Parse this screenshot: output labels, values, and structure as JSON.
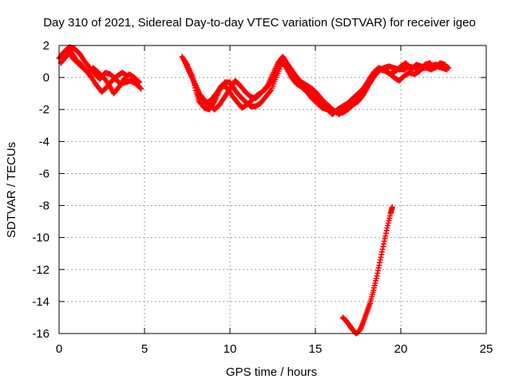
{
  "chart_data": {
    "type": "scatter",
    "title": "Day 310 of 2021, Sidereal Day-to-day VTEC variation (SDTVAR) for receiver igeo",
    "xlabel": "GPS time / hours",
    "ylabel": "SDTVAR / TECUs",
    "xlim": [
      0,
      25
    ],
    "ylim": [
      -16,
      2
    ],
    "xticks": [
      0,
      5,
      10,
      15,
      20,
      25
    ],
    "yticks": [
      -16,
      -14,
      -12,
      -10,
      -8,
      -6,
      -4,
      -2,
      0,
      2
    ],
    "grid": true,
    "marker": "plus",
    "color": "#ff0000",
    "series": [
      {
        "name": "SDTVAR",
        "segments": [
          [
            [
              0.0,
              1.2
            ],
            [
              0.3,
              1.6
            ],
            [
              0.6,
              1.9
            ],
            [
              0.9,
              1.8
            ],
            [
              1.2,
              1.5
            ],
            [
              1.5,
              1.0
            ],
            [
              1.8,
              0.6
            ],
            [
              2.1,
              0.2
            ],
            [
              2.4,
              -0.1
            ],
            [
              2.7,
              0.3
            ],
            [
              3.0,
              0.2
            ],
            [
              3.3,
              -0.1
            ],
            [
              3.6,
              -0.4
            ],
            [
              3.9,
              -0.3
            ],
            [
              4.2,
              -0.2
            ],
            [
              4.5,
              -0.4
            ],
            [
              4.8,
              -0.7
            ]
          ],
          [
            [
              0.1,
              0.9
            ],
            [
              0.4,
              1.3
            ],
            [
              0.7,
              1.6
            ],
            [
              1.0,
              1.1
            ],
            [
              1.3,
              0.8
            ],
            [
              1.6,
              0.4
            ],
            [
              1.9,
              0.0
            ],
            [
              2.2,
              -0.5
            ],
            [
              2.5,
              -0.9
            ],
            [
              2.8,
              -0.6
            ],
            [
              3.1,
              -0.2
            ],
            [
              3.4,
              0.1
            ],
            [
              3.7,
              0.3
            ],
            [
              4.0,
              0.1
            ]
          ],
          [
            [
              0.2,
              1.5
            ],
            [
              0.5,
              1.8
            ],
            [
              0.8,
              1.2
            ],
            [
              1.1,
              0.9
            ],
            [
              1.4,
              0.6
            ],
            [
              1.7,
              0.3
            ],
            [
              2.0,
              0.6
            ],
            [
              2.3,
              0.3
            ],
            [
              2.6,
              0.0
            ],
            [
              2.9,
              -0.4
            ],
            [
              3.2,
              -1.0
            ],
            [
              3.5,
              -0.6
            ],
            [
              3.8,
              -0.1
            ],
            [
              4.1,
              0.2
            ],
            [
              4.4,
              0.0
            ],
            [
              4.7,
              -0.3
            ]
          ],
          [
            [
              7.2,
              1.3
            ],
            [
              7.5,
              0.8
            ],
            [
              7.8,
              0.1
            ],
            [
              8.0,
              -0.8
            ],
            [
              8.2,
              -1.5
            ],
            [
              8.5,
              -1.9
            ],
            [
              8.8,
              -2.0
            ],
            [
              9.1,
              -1.5
            ],
            [
              9.4,
              -0.8
            ],
            [
              9.7,
              -0.3
            ],
            [
              10.0,
              -0.3
            ],
            [
              10.3,
              -0.8
            ],
            [
              10.6,
              -1.2
            ],
            [
              10.9,
              -1.5
            ],
            [
              11.2,
              -1.8
            ],
            [
              11.5,
              -1.8
            ],
            [
              11.8,
              -1.6
            ],
            [
              12.1,
              -1.2
            ],
            [
              12.4,
              -0.8
            ],
            [
              12.7,
              0.0
            ],
            [
              13.0,
              0.8
            ],
            [
              13.3,
              0.9
            ],
            [
              13.6,
              0.5
            ],
            [
              13.9,
              0.0
            ],
            [
              14.2,
              -0.3
            ],
            [
              14.5,
              -0.5
            ],
            [
              14.8,
              -0.7
            ],
            [
              15.1,
              -1.0
            ],
            [
              15.4,
              -1.4
            ],
            [
              15.7,
              -1.7
            ],
            [
              16.0,
              -2.0
            ],
            [
              16.3,
              -2.2
            ],
            [
              16.6,
              -2.2
            ],
            [
              16.9,
              -2.0
            ],
            [
              17.2,
              -1.7
            ],
            [
              17.5,
              -1.5
            ],
            [
              17.8,
              -1.1
            ],
            [
              18.1,
              -0.5
            ],
            [
              18.4,
              0.0
            ],
            [
              18.7,
              0.4
            ],
            [
              19.0,
              0.6
            ],
            [
              19.3,
              0.7
            ],
            [
              19.6,
              0.6
            ],
            [
              19.9,
              0.5
            ],
            [
              20.2,
              0.5
            ],
            [
              20.5,
              0.7
            ],
            [
              20.8,
              0.6
            ],
            [
              21.1,
              0.5
            ],
            [
              21.4,
              0.6
            ],
            [
              21.7,
              0.7
            ],
            [
              22.0,
              0.8
            ],
            [
              22.3,
              0.8
            ],
            [
              22.6,
              0.7
            ],
            [
              22.8,
              0.6
            ]
          ],
          [
            [
              7.3,
              1.1
            ],
            [
              7.6,
              0.4
            ],
            [
              7.9,
              -0.3
            ],
            [
              8.2,
              -1.0
            ],
            [
              8.5,
              -1.4
            ],
            [
              8.8,
              -1.7
            ],
            [
              9.1,
              -2.0
            ],
            [
              9.4,
              -1.7
            ],
            [
              9.7,
              -1.2
            ],
            [
              10.0,
              -0.7
            ],
            [
              10.3,
              -0.2
            ],
            [
              10.6,
              -0.5
            ],
            [
              10.9,
              -0.9
            ],
            [
              11.2,
              -1.2
            ],
            [
              11.5,
              -1.3
            ],
            [
              11.8,
              -1.0
            ],
            [
              12.1,
              -0.7
            ],
            [
              12.4,
              -0.3
            ],
            [
              12.7,
              0.4
            ],
            [
              13.0,
              1.2
            ],
            [
              13.3,
              0.6
            ],
            [
              13.6,
              0.0
            ],
            [
              13.9,
              -0.4
            ],
            [
              14.2,
              -0.6
            ],
            [
              14.5,
              -0.9
            ],
            [
              14.8,
              -1.3
            ],
            [
              15.1,
              -1.6
            ],
            [
              15.4,
              -1.9
            ],
            [
              15.7,
              -2.0
            ],
            [
              16.0,
              -2.3
            ],
            [
              16.3,
              -2.0
            ],
            [
              16.6,
              -1.8
            ],
            [
              16.9,
              -1.6
            ],
            [
              17.2,
              -1.3
            ],
            [
              17.5,
              -1.0
            ],
            [
              17.8,
              -0.7
            ],
            [
              18.1,
              -0.2
            ],
            [
              18.4,
              0.3
            ],
            [
              18.7,
              0.6
            ],
            [
              19.0,
              0.5
            ],
            [
              19.3,
              0.3
            ],
            [
              19.6,
              0.0
            ],
            [
              19.9,
              -0.2
            ],
            [
              20.2,
              0.1
            ],
            [
              20.5,
              0.3
            ],
            [
              20.8,
              0.2
            ],
            [
              21.1,
              0.4
            ],
            [
              21.4,
              0.8
            ],
            [
              21.7,
              0.9
            ],
            [
              22.0,
              0.6
            ],
            [
              22.3,
              0.9
            ],
            [
              22.6,
              0.8
            ]
          ],
          [
            [
              7.4,
              0.9
            ],
            [
              7.7,
              0.2
            ],
            [
              8.0,
              -0.5
            ],
            [
              8.3,
              -1.2
            ],
            [
              8.6,
              -1.6
            ],
            [
              8.9,
              -1.4
            ],
            [
              9.2,
              -1.0
            ],
            [
              9.5,
              -0.5
            ],
            [
              9.8,
              -0.6
            ],
            [
              10.1,
              -1.1
            ],
            [
              10.4,
              -1.5
            ],
            [
              10.7,
              -1.9
            ],
            [
              11.0,
              -1.7
            ],
            [
              11.3,
              -1.4
            ],
            [
              11.6,
              -1.1
            ],
            [
              11.9,
              -0.9
            ],
            [
              12.2,
              -0.5
            ],
            [
              12.5,
              0.2
            ],
            [
              12.8,
              0.9
            ],
            [
              13.1,
              1.3
            ],
            [
              13.4,
              0.8
            ],
            [
              13.7,
              0.3
            ],
            [
              14.0,
              -0.1
            ],
            [
              14.3,
              -0.4
            ],
            [
              14.6,
              -0.8
            ],
            [
              14.9,
              -1.2
            ],
            [
              15.2,
              -1.5
            ],
            [
              15.5,
              -1.8
            ],
            [
              15.8,
              -2.1
            ],
            [
              16.1,
              -2.1
            ],
            [
              16.4,
              -2.3
            ],
            [
              16.7,
              -1.9
            ],
            [
              17.0,
              -1.8
            ],
            [
              17.3,
              -1.6
            ],
            [
              17.6,
              -1.2
            ],
            [
              17.9,
              -0.8
            ],
            [
              18.2,
              -0.3
            ],
            [
              18.5,
              0.2
            ],
            [
              18.8,
              0.5
            ],
            [
              19.1,
              0.4
            ],
            [
              19.4,
              0.2
            ],
            [
              19.7,
              0.4
            ],
            [
              20.0,
              0.7
            ],
            [
              20.3,
              0.9
            ],
            [
              20.6,
              0.5
            ],
            [
              20.9,
              0.8
            ],
            [
              21.2,
              0.7
            ],
            [
              21.5,
              0.6
            ],
            [
              21.8,
              0.5
            ],
            [
              22.1,
              0.7
            ],
            [
              22.4,
              0.6
            ],
            [
              22.7,
              0.5
            ]
          ],
          [
            [
              16.6,
              -15.0
            ],
            [
              16.8,
              -15.2
            ],
            [
              17.0,
              -15.5
            ],
            [
              17.2,
              -15.8
            ],
            [
              17.4,
              -16.0
            ],
            [
              17.6,
              -15.8
            ],
            [
              17.8,
              -15.3
            ],
            [
              18.0,
              -14.7
            ],
            [
              18.2,
              -14.1
            ],
            [
              18.4,
              -13.3
            ],
            [
              18.6,
              -12.4
            ],
            [
              18.8,
              -11.4
            ],
            [
              19.0,
              -10.4
            ],
            [
              19.2,
              -9.4
            ],
            [
              19.4,
              -8.5
            ],
            [
              19.5,
              -8.1
            ]
          ]
        ]
      }
    ]
  }
}
